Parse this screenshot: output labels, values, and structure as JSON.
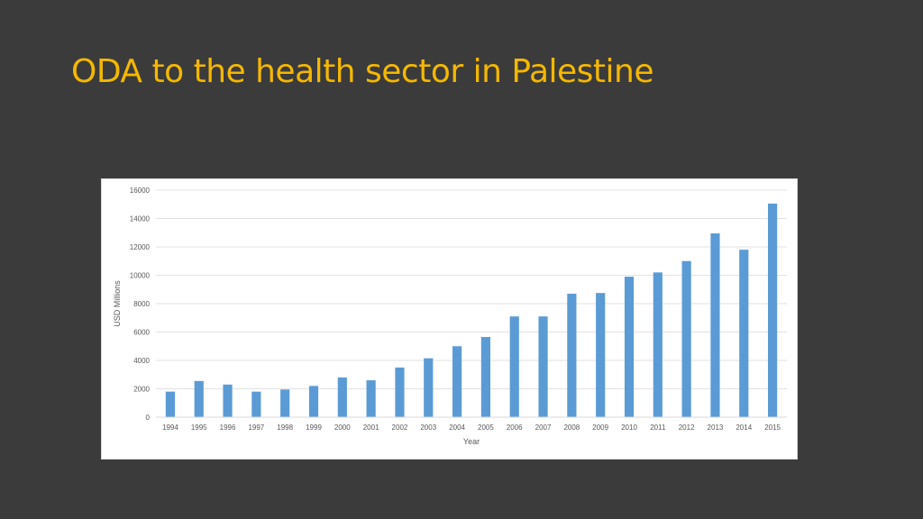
{
  "slide": {
    "title": "ODA to the health sector in Palestine",
    "title_color": "#f5b800",
    "background": "#3b3b3b"
  },
  "chart_data": {
    "type": "bar",
    "title": "",
    "xlabel": "Year",
    "ylabel": "USD Millions",
    "ylim": [
      0,
      16000
    ],
    "yticks": [
      0,
      2000,
      4000,
      6000,
      8000,
      10000,
      12000,
      14000,
      16000
    ],
    "grid": true,
    "legend": "none",
    "bar_color": "#5b9bd5",
    "categories": [
      "1994",
      "1995",
      "1996",
      "1997",
      "1998",
      "1999",
      "2000",
      "2001",
      "2002",
      "2003",
      "2004",
      "2005",
      "2006",
      "2007",
      "2008",
      "2009",
      "2010",
      "2011",
      "2012",
      "2013",
      "2014",
      "2015"
    ],
    "values": [
      1800,
      2550,
      2300,
      1800,
      1950,
      2200,
      2800,
      2600,
      3500,
      4150,
      5000,
      5650,
      7100,
      7100,
      8700,
      8750,
      9900,
      10200,
      11000,
      12950,
      11800,
      15050
    ]
  }
}
